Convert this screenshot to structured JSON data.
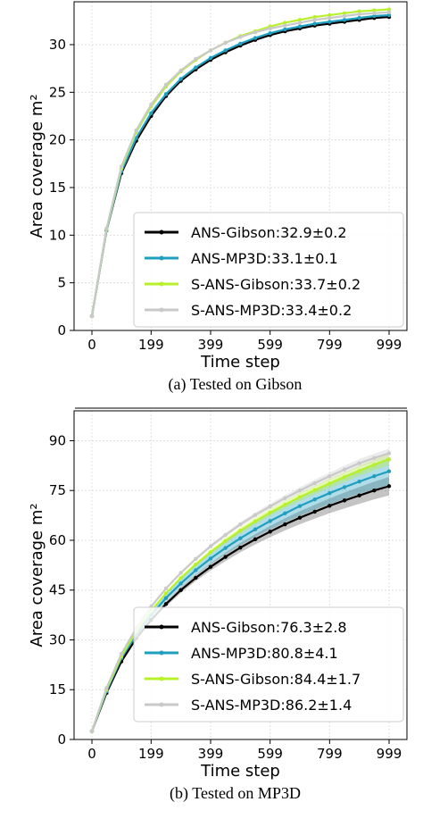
{
  "chart_data": [
    {
      "type": "line",
      "caption": "(a) Tested on Gibson",
      "xlabel": "Time step",
      "ylabel": "Area coverage m²",
      "xlim": [
        -60,
        1059
      ],
      "ylim": [
        0,
        34.5
      ],
      "xticks": [
        0,
        199,
        399,
        599,
        799,
        999
      ],
      "yticks": [
        0,
        5,
        10,
        15,
        20,
        25,
        30
      ],
      "grid": true,
      "legend_position": "lower-right",
      "x": [
        0,
        49,
        99,
        149,
        199,
        249,
        299,
        349,
        399,
        449,
        499,
        549,
        599,
        649,
        699,
        749,
        799,
        849,
        899,
        949,
        999
      ],
      "series": [
        {
          "name": "ANS-Gibson:32.9±0.2",
          "color": "#000000",
          "values": [
            1.5,
            10.5,
            16.5,
            19.9,
            22.5,
            24.6,
            26.2,
            27.4,
            28.4,
            29.2,
            29.9,
            30.5,
            31.0,
            31.4,
            31.7,
            32.0,
            32.2,
            32.4,
            32.6,
            32.8,
            32.9
          ]
        },
        {
          "name": "ANS-MP3D:33.1±0.1",
          "color": "#1f9fbf",
          "values": [
            1.5,
            10.5,
            16.7,
            20.2,
            22.8,
            24.8,
            26.4,
            27.6,
            28.6,
            29.4,
            30.1,
            30.7,
            31.2,
            31.6,
            31.9,
            32.2,
            32.4,
            32.6,
            32.8,
            33.0,
            33.1
          ]
        },
        {
          "name": "S-ANS-Gibson:33.7±0.2",
          "color": "#b8f029",
          "values": [
            1.5,
            10.6,
            17.0,
            20.8,
            23.5,
            25.6,
            27.2,
            28.4,
            29.4,
            30.2,
            30.9,
            31.4,
            31.9,
            32.3,
            32.6,
            32.9,
            33.1,
            33.3,
            33.5,
            33.6,
            33.7
          ]
        },
        {
          "name": "S-ANS-MP3D:33.4±0.2",
          "color": "#c9c9c9",
          "values": [
            1.5,
            10.7,
            17.2,
            21.0,
            23.7,
            25.8,
            27.3,
            28.5,
            29.4,
            30.2,
            30.8,
            31.3,
            31.7,
            32.0,
            32.3,
            32.6,
            32.8,
            33.0,
            33.2,
            33.3,
            33.4
          ]
        }
      ]
    },
    {
      "type": "line",
      "caption": "(b) Tested on MP3D",
      "xlabel": "Time step",
      "ylabel": "Area coverage m²",
      "xlim": [
        -60,
        1059
      ],
      "ylim": [
        0,
        99
      ],
      "xticks": [
        0,
        199,
        399,
        599,
        799,
        999
      ],
      "yticks": [
        0,
        15,
        30,
        45,
        60,
        75,
        90
      ],
      "grid": true,
      "legend_position": "lower-right",
      "x": [
        0,
        49,
        99,
        149,
        199,
        249,
        299,
        349,
        399,
        449,
        499,
        549,
        599,
        649,
        699,
        749,
        799,
        849,
        899,
        949,
        999
      ],
      "series": [
        {
          "name": "ANS-Gibson:76.3±2.8",
          "color": "#000000",
          "band": 2.8,
          "values": [
            2.5,
            14.0,
            23.5,
            30.5,
            36.0,
            40.8,
            45.0,
            48.7,
            52.0,
            55.0,
            57.8,
            60.3,
            62.6,
            64.8,
            66.8,
            68.6,
            70.4,
            72.0,
            73.5,
            75.0,
            76.3
          ]
        },
        {
          "name": "ANS-MP3D:80.8±4.1",
          "color": "#1f9fbf",
          "band": 4.1,
          "values": [
            2.5,
            14.5,
            24.5,
            31.5,
            37.5,
            42.6,
            47.0,
            51.0,
            54.5,
            57.7,
            60.6,
            63.3,
            65.8,
            68.1,
            70.3,
            72.3,
            74.2,
            76.0,
            77.7,
            79.3,
            80.8
          ]
        },
        {
          "name": "S-ANS-Gibson:84.4±1.7",
          "color": "#b8f029",
          "band": 1.7,
          "values": [
            2.5,
            15.0,
            25.0,
            32.5,
            38.7,
            44.0,
            48.6,
            52.7,
            56.4,
            59.8,
            62.9,
            65.7,
            68.3,
            70.7,
            73.0,
            75.1,
            77.1,
            79.0,
            80.9,
            82.7,
            84.4
          ]
        },
        {
          "name": "S-ANS-MP3D:86.2±1.4",
          "color": "#c9c9c9",
          "band": 1.4,
          "values": [
            2.5,
            15.5,
            25.8,
            33.5,
            40.0,
            45.5,
            50.2,
            54.4,
            58.2,
            61.6,
            64.8,
            67.6,
            70.2,
            72.7,
            75.0,
            77.2,
            79.3,
            81.3,
            83.2,
            84.8,
            86.2
          ]
        }
      ]
    }
  ]
}
